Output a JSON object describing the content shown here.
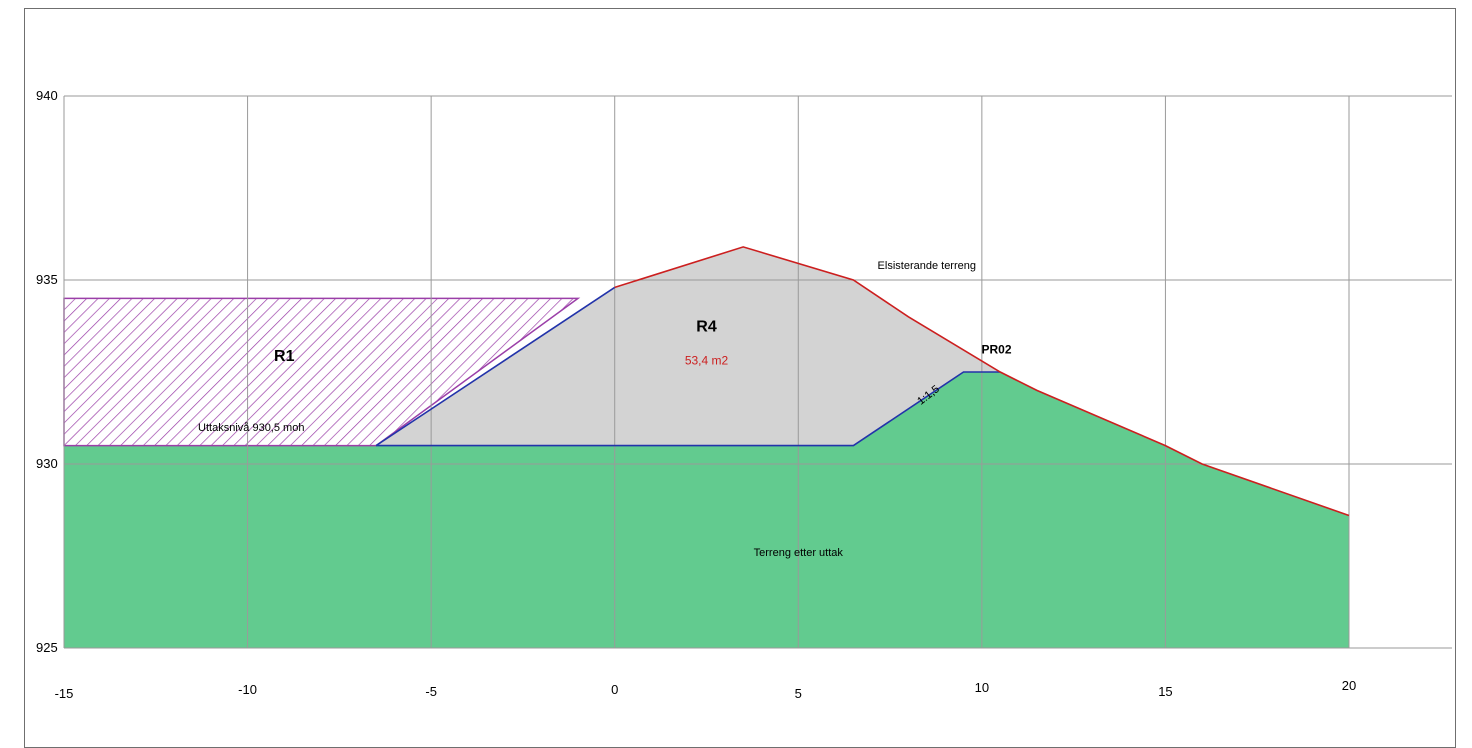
{
  "chart_data": {
    "type": "area",
    "x_range": [
      -15,
      20
    ],
    "y_range": [
      925,
      940
    ],
    "x_ticks": [
      "-15",
      "-10",
      "-5",
      "0",
      "5",
      "10",
      "15",
      "20"
    ],
    "y_ticks": [
      "940",
      "935",
      "930",
      "925"
    ],
    "grid": true,
    "existing_terrain": {
      "label": "Elsisterande terreng",
      "color": "#cc1f1f",
      "points": [
        [
          0,
          934.8
        ],
        [
          3.5,
          935.9
        ],
        [
          6.5,
          935.0
        ],
        [
          8,
          934.0
        ],
        [
          10.5,
          932.5
        ],
        [
          11.5,
          932.0
        ],
        [
          15,
          930.5
        ],
        [
          16,
          930.0
        ],
        [
          20,
          928.6
        ]
      ]
    },
    "cut_profile": {
      "color": "#2233aa",
      "points": [
        [
          -6.5,
          930.5
        ],
        [
          0,
          934.8
        ],
        [
          0,
          930.5
        ],
        [
          6.5,
          930.5
        ],
        [
          9.5,
          932.5
        ],
        [
          10.5,
          932.5
        ]
      ]
    },
    "terrain_after": {
      "label": "Terreng etter uttak",
      "color": "#62cb8f",
      "points": [
        [
          -15,
          930.5
        ],
        [
          6.5,
          930.5
        ],
        [
          9.5,
          932.5
        ],
        [
          10.5,
          932.5
        ],
        [
          11.5,
          932.0
        ],
        [
          15,
          930.5
        ],
        [
          16,
          930.0
        ],
        [
          20,
          928.6
        ],
        [
          20,
          925
        ],
        [
          -15,
          925
        ]
      ]
    },
    "areas": [
      {
        "name": "R1",
        "fill": "hatch",
        "color": "#9b3fa8",
        "polygon": [
          [
            -15,
            934.5
          ],
          [
            -1,
            934.5
          ],
          [
            -6.5,
            930.5
          ],
          [
            -15,
            930.5
          ]
        ],
        "label": "R1",
        "label_at": [
          -9,
          932.8
        ]
      },
      {
        "name": "R4",
        "fill": "#d3d3d3",
        "polygon": [
          [
            -6.5,
            930.5
          ],
          [
            0,
            934.8
          ],
          [
            3.5,
            935.9
          ],
          [
            6.5,
            935.0
          ],
          [
            8,
            934.0
          ],
          [
            10.5,
            932.5
          ],
          [
            9.5,
            932.5
          ],
          [
            6.5,
            930.5
          ]
        ],
        "label": "R4",
        "label_at": [
          2.5,
          933.6
        ],
        "value_label": "53,4 m2",
        "value_at": [
          2.5,
          932.7
        ]
      }
    ],
    "annotations": [
      {
        "text": "Elsisterande terreng",
        "at": [
          8.5,
          935.3
        ],
        "size": 11,
        "weight": "normal",
        "color": "#000",
        "rotate": 0
      },
      {
        "text": "PR02",
        "at": [
          10.4,
          933.0
        ],
        "size": 12,
        "weight": "bold",
        "color": "#000",
        "rotate": 0
      },
      {
        "text": "1:1,5",
        "at": [
          8.6,
          931.8
        ],
        "size": 11,
        "weight": "normal",
        "color": "#000",
        "rotate": -38
      },
      {
        "text": "Uttaksnivå 930,5 moh",
        "at": [
          -9.9,
          930.9
        ],
        "size": 11,
        "weight": "normal",
        "color": "#000",
        "rotate": 0
      },
      {
        "text": "Terreng etter uttak",
        "at": [
          5,
          927.5
        ],
        "size": 11,
        "weight": "normal",
        "color": "#000",
        "rotate": 0
      }
    ]
  }
}
